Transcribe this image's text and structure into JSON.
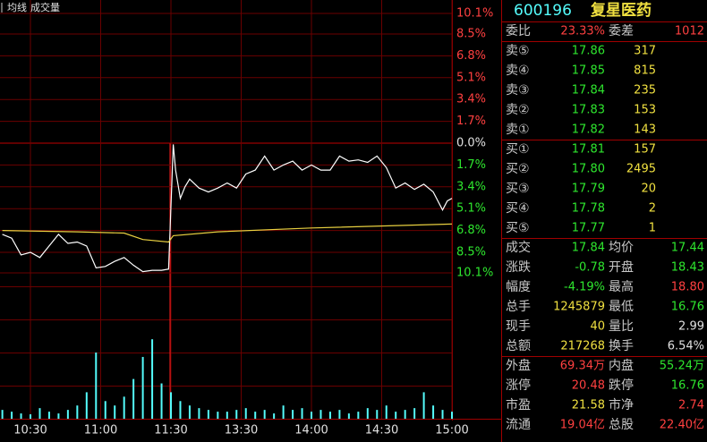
{
  "chart_data": {
    "type": "line",
    "xlim": [
      47,
      240
    ],
    "xticks": [
      {
        "value": 60,
        "label": "10:30"
      },
      {
        "value": 90,
        "label": "11:00"
      },
      {
        "value": 120,
        "label": "11:30"
      },
      {
        "value": 150,
        "label": "13:30"
      },
      {
        "value": 180,
        "label": "14:00"
      },
      {
        "value": 210,
        "label": "14:30"
      },
      {
        "value": 240,
        "label": "15:00"
      }
    ],
    "ylim": [
      -10.1,
      10.1
    ],
    "yticks": [
      {
        "value": 10.1,
        "label": "10.1%"
      },
      {
        "value": 8.5,
        "label": "8.5%"
      },
      {
        "value": 6.8,
        "label": "6.8%"
      },
      {
        "value": 5.1,
        "label": "5.1%"
      },
      {
        "value": 3.4,
        "label": "3.4%"
      },
      {
        "value": 1.7,
        "label": "1.7%"
      },
      {
        "value": 0,
        "label": "0.0%"
      },
      {
        "value": -1.7,
        "label": "1.7%"
      },
      {
        "value": -3.4,
        "label": "3.4%"
      },
      {
        "value": -5.1,
        "label": "5.1%"
      },
      {
        "value": -6.8,
        "label": "6.8%"
      },
      {
        "value": -8.5,
        "label": "8.5%"
      },
      {
        "value": -10.1,
        "label": "10.1%"
      }
    ],
    "y2lim": [
      0,
      150
    ],
    "grid": true,
    "series": [
      {
        "color": "#ffffff",
        "x": [
          48,
          52,
          56,
          60,
          64,
          68,
          72,
          76,
          80,
          84,
          88,
          92,
          96,
          100,
          104,
          108,
          112,
          116,
          119,
          121,
          122,
          124,
          126,
          128,
          132,
          136,
          140,
          144,
          148,
          152,
          156,
          160,
          164,
          168,
          172,
          176,
          180,
          184,
          188,
          192,
          196,
          200,
          204,
          208,
          212,
          216,
          220,
          224,
          228,
          232,
          236,
          238,
          240
        ],
        "values": [
          -7.1,
          -7.4,
          -8.7,
          -8.5,
          -8.9,
          -8.0,
          -7.1,
          -7.8,
          -7.7,
          -8.0,
          -9.7,
          -9.6,
          -9.2,
          -8.9,
          -9.5,
          -10.0,
          -9.9,
          -9.9,
          -9.8,
          -0.1,
          -2.1,
          -4.3,
          -3.4,
          -2.8,
          -3.5,
          -3.8,
          -3.5,
          -3.1,
          -3.5,
          -2.4,
          -2.1,
          -1.0,
          -2.1,
          -1.7,
          -1.4,
          -2.1,
          -1.7,
          -2.1,
          -2.1,
          -1.0,
          -1.4,
          -1.3,
          -1.5,
          -1.0,
          -1.9,
          -3.5,
          -3.1,
          -3.6,
          -3.2,
          -3.8,
          -5.2,
          -4.5,
          -4.3
        ]
      },
      {
        "name": "均线",
        "color": "#e8d040",
        "x": [
          48,
          80,
          100,
          108,
          119,
          121,
          140,
          180,
          240
        ],
        "values": [
          -6.8,
          -6.9,
          -7.0,
          -7.5,
          -7.7,
          -7.2,
          -6.9,
          -6.6,
          -6.3
        ]
      },
      {
        "name": "成交量",
        "type": "bar",
        "axis": "y2",
        "color": "#54fcfc",
        "x": [
          48,
          52,
          56,
          60,
          64,
          68,
          72,
          76,
          80,
          84,
          88,
          92,
          96,
          100,
          104,
          108,
          112,
          116,
          120,
          124,
          128,
          132,
          136,
          140,
          144,
          148,
          152,
          156,
          160,
          164,
          168,
          172,
          176,
          180,
          184,
          188,
          192,
          196,
          200,
          204,
          208,
          212,
          216,
          220,
          224,
          228,
          232,
          236,
          240
        ],
        "values": [
          10,
          8,
          6,
          5,
          12,
          8,
          6,
          10,
          15,
          30,
          75,
          20,
          15,
          25,
          45,
          70,
          90,
          40,
          30,
          20,
          15,
          12,
          10,
          8,
          8,
          10,
          12,
          8,
          10,
          6,
          15,
          10,
          12,
          8,
          10,
          8,
          10,
          6,
          8,
          12,
          10,
          15,
          8,
          10,
          12,
          30,
          15,
          10,
          8
        ]
      }
    ]
  },
  "header": {
    "code": "600196",
    "name": "复星医药"
  },
  "commission": {
    "ratio_label": "委比",
    "ratio": "23.33%",
    "diff_label": "委差",
    "diff": "1012"
  },
  "order_book": [
    {
      "label": "卖⑤",
      "price": "17.86",
      "volume": "317"
    },
    {
      "label": "卖④",
      "price": "17.85",
      "volume": "815"
    },
    {
      "label": "卖③",
      "price": "17.84",
      "volume": "235"
    },
    {
      "label": "卖②",
      "price": "17.83",
      "volume": "153"
    },
    {
      "label": "卖①",
      "price": "17.82",
      "volume": "143"
    },
    {
      "label": "买①",
      "price": "17.81",
      "volume": "157"
    },
    {
      "label": "买②",
      "price": "17.80",
      "volume": "2495"
    },
    {
      "label": "买③",
      "price": "17.79",
      "volume": "20"
    },
    {
      "label": "买④",
      "price": "17.78",
      "volume": "2"
    },
    {
      "label": "买⑤",
      "price": "17.77",
      "volume": "1"
    }
  ],
  "stats": [
    {
      "label": "成交",
      "value": "17.84",
      "label2": "均价",
      "value2": "17.44"
    },
    {
      "label": "涨跌",
      "value": "-0.78",
      "label2": "开盘",
      "value2": "18.43"
    },
    {
      "label": "幅度",
      "value": "-4.19%",
      "label2": "最高",
      "value2": "18.80"
    },
    {
      "label": "总手",
      "value": "1245879",
      "label2": "最低",
      "value2": "16.76"
    },
    {
      "label": "现手",
      "value": "40",
      "label2": "量比",
      "value2": "2.99"
    },
    {
      "label": "总额",
      "value": "217268",
      "label2": "换手",
      "value2": "6.54%"
    },
    {
      "label": "外盘",
      "value": "69.34万",
      "label2": "内盘",
      "value2": "55.24万"
    },
    {
      "label": "涨停",
      "value": "20.48",
      "label2": "跌停",
      "value2": "16.76"
    },
    {
      "label": "市盈",
      "value": "21.58",
      "label2": "市净",
      "value2": "2.74"
    },
    {
      "label": "流通",
      "value": "19.04亿",
      "label2": "总股",
      "value2": "22.40亿"
    }
  ]
}
